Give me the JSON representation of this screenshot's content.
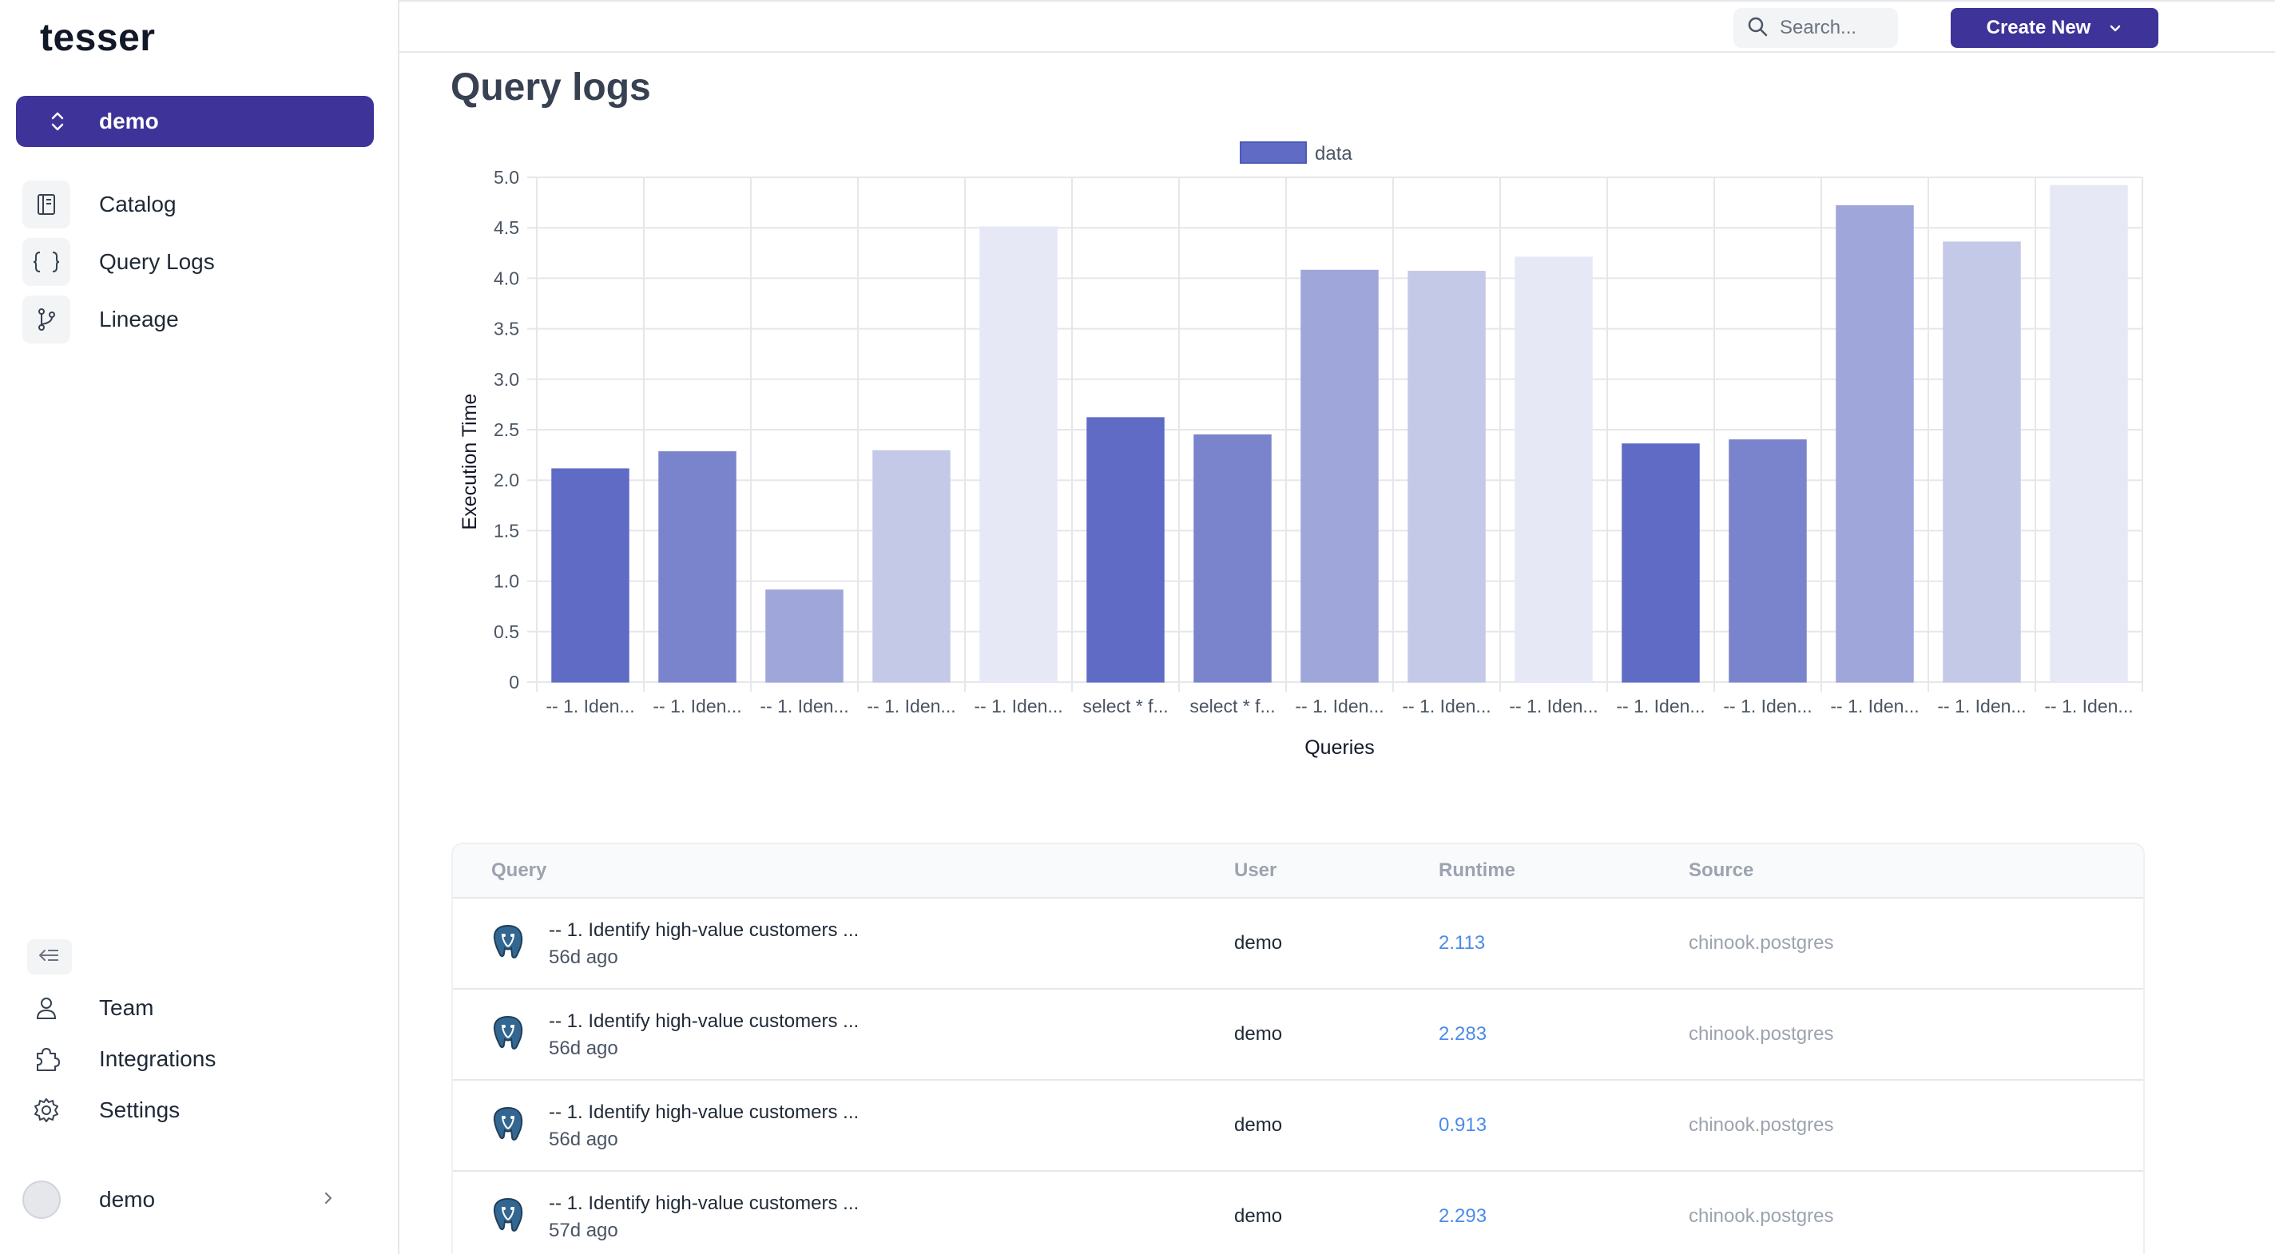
{
  "app": {
    "logo": "tesser"
  },
  "sidebar": {
    "workspace": "demo",
    "nav": [
      {
        "label": "Catalog",
        "icon": "book-icon"
      },
      {
        "label": "Query Logs",
        "icon": "braces-icon"
      },
      {
        "label": "Lineage",
        "icon": "git-branch-icon"
      }
    ],
    "bottom_nav": [
      {
        "label": "Team",
        "icon": "user-icon"
      },
      {
        "label": "Integrations",
        "icon": "puzzle-icon"
      },
      {
        "label": "Settings",
        "icon": "gear-icon"
      }
    ],
    "user": "demo"
  },
  "topbar": {
    "search_placeholder": "Search...",
    "create_label": "Create New"
  },
  "page": {
    "title": "Query logs"
  },
  "chart_data": {
    "type": "bar",
    "legend": [
      "data"
    ],
    "legend_position": "top-center",
    "xlabel": "Queries",
    "ylabel": "Execution Time",
    "ylim": [
      0,
      5.0
    ],
    "yticks": [
      "0",
      "0.5",
      "1.0",
      "1.5",
      "2.0",
      "2.5",
      "3.0",
      "3.5",
      "4.0",
      "4.5",
      "5.0"
    ],
    "grid": true,
    "categories": [
      "-- 1. Iden...",
      "-- 1. Iden...",
      "-- 1. Iden...",
      "-- 1. Iden...",
      "-- 1. Iden...",
      "select * f...",
      "select * f...",
      "-- 1. Iden...",
      "-- 1. Iden...",
      "-- 1. Iden...",
      "-- 1. Iden...",
      "-- 1. Iden...",
      "-- 1. Iden...",
      "-- 1. Iden...",
      "-- 1. Iden..."
    ],
    "series": [
      {
        "name": "data",
        "values": [
          2.113,
          2.283,
          0.913,
          2.293,
          4.51,
          2.62,
          2.45,
          4.08,
          4.07,
          4.21,
          2.36,
          2.4,
          4.72,
          4.36,
          4.92
        ]
      }
    ],
    "colors": [
      "#5f6bc4",
      "#7a84cc",
      "#9ea6da",
      "#c5c9e8",
      "#e6e8f5"
    ]
  },
  "table": {
    "headers": {
      "query": "Query",
      "user": "User",
      "runtime": "Runtime",
      "source": "Source"
    },
    "rows": [
      {
        "query": "-- 1. Identify high-value customers ...",
        "time": "56d ago",
        "user": "demo",
        "runtime": "2.113",
        "source": "chinook.postgres"
      },
      {
        "query": "-- 1. Identify high-value customers ...",
        "time": "56d ago",
        "user": "demo",
        "runtime": "2.283",
        "source": "chinook.postgres"
      },
      {
        "query": "-- 1. Identify high-value customers ...",
        "time": "56d ago",
        "user": "demo",
        "runtime": "0.913",
        "source": "chinook.postgres"
      },
      {
        "query": "-- 1. Identify high-value customers ...",
        "time": "57d ago",
        "user": "demo",
        "runtime": "2.293",
        "source": "chinook.postgres"
      }
    ]
  }
}
